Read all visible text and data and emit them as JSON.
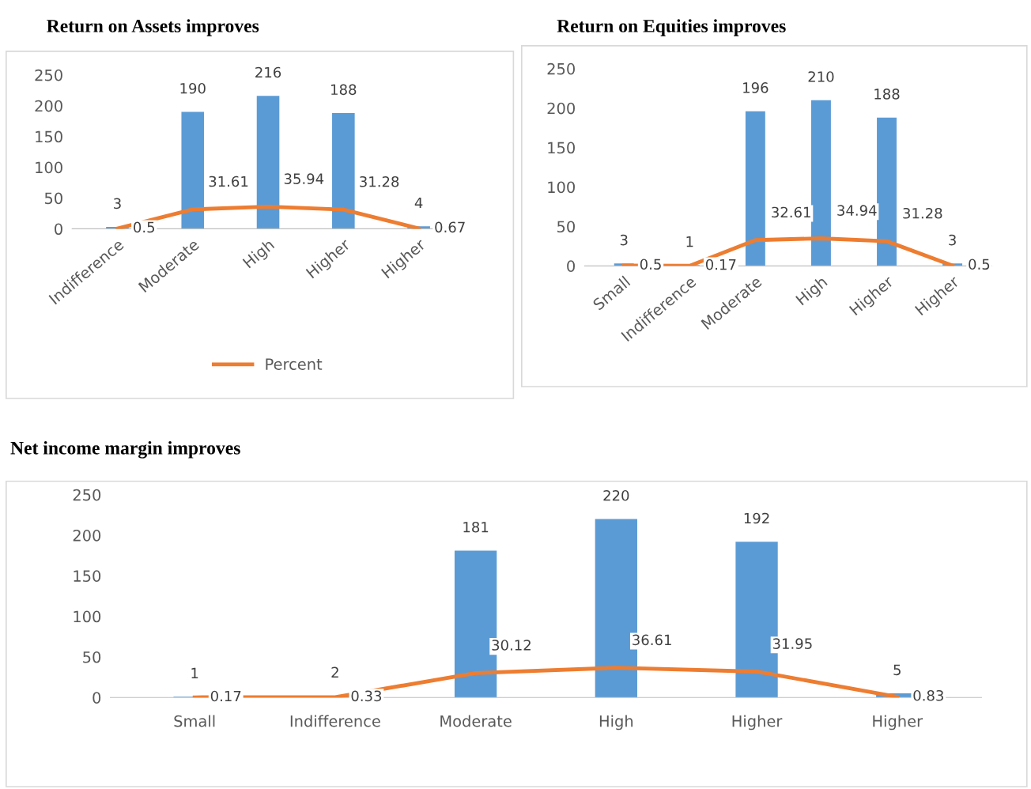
{
  "chart_data": [
    {
      "type": "bar",
      "title": "Return on Assets improves",
      "categories": [
        "Indifference",
        "Moderate",
        "High",
        "Higher",
        "Higher"
      ],
      "ylim": [
        0,
        250
      ],
      "yticks": [
        0,
        50,
        100,
        150,
        200,
        250
      ],
      "grid": false,
      "legend": "bottom",
      "data_labels": true,
      "series": [
        {
          "color": "#5b9bd5",
          "values": [
            3,
            190,
            216,
            188,
            4
          ]
        },
        {
          "type": "line",
          "name": "Percent",
          "color": "#ed7d31",
          "values": [
            0.5,
            31.61,
            35.94,
            31.28,
            0.67
          ]
        }
      ]
    },
    {
      "type": "bar",
      "title": "Return on Equities improves",
      "categories": [
        "Small",
        "Indifference",
        "Moderate",
        "High",
        "Higher",
        "Higher"
      ],
      "ylim": [
        0,
        250
      ],
      "yticks": [
        0,
        50,
        100,
        150,
        200,
        250
      ],
      "grid": false,
      "data_labels": true,
      "series": [
        {
          "color": "#5b9bd5",
          "values": [
            3,
            1,
            196,
            210,
            188,
            3
          ]
        },
        {
          "type": "line",
          "color": "#ed7d31",
          "values": [
            0.5,
            0.17,
            32.61,
            34.94,
            31.28,
            0.5
          ]
        }
      ]
    },
    {
      "type": "bar",
      "title": "Net income margin improves",
      "categories": [
        "Small",
        "Indifference",
        "Moderate",
        "High",
        "Higher",
        "Higher"
      ],
      "ylim": [
        0,
        250
      ],
      "yticks": [
        0,
        50,
        100,
        150,
        200,
        250
      ],
      "grid": false,
      "data_labels": true,
      "series": [
        {
          "color": "#5b9bd5",
          "values": [
            1,
            2,
            181,
            220,
            192,
            5
          ]
        },
        {
          "type": "line",
          "color": "#ed7d31",
          "values": [
            0.17,
            0.33,
            30.12,
            36.61,
            31.95,
            0.83
          ]
        }
      ]
    }
  ]
}
